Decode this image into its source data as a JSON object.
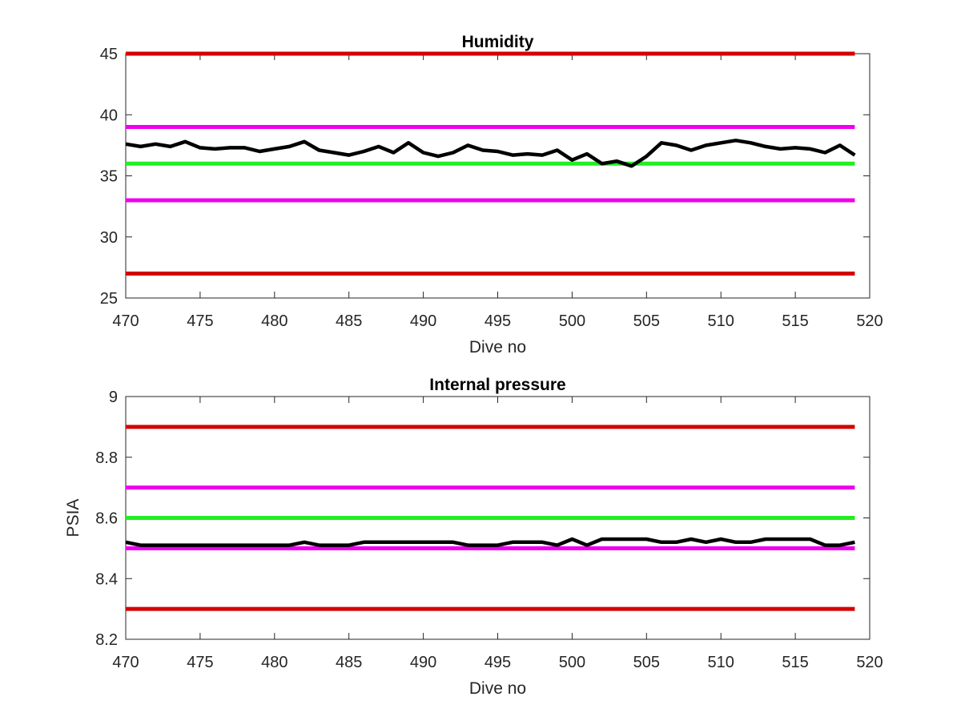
{
  "chart_data": [
    {
      "type": "line",
      "title": "Humidity",
      "xlabel": "Dive no",
      "ylabel": "",
      "xlim": [
        470,
        520
      ],
      "ylim": [
        25,
        45
      ],
      "xticks": [
        "470",
        "475",
        "480",
        "485",
        "490",
        "495",
        "500",
        "505",
        "510",
        "515",
        "520"
      ],
      "yticks": [
        "25",
        "30",
        "35",
        "40",
        "45"
      ],
      "grid": false,
      "limit_lines": [
        {
          "y": 45,
          "color": "#d40000"
        },
        {
          "y": 39,
          "color": "#ee00ee"
        },
        {
          "y": 36,
          "color": "#22ee22"
        },
        {
          "y": 33,
          "color": "#ee00ee"
        },
        {
          "y": 27,
          "color": "#d40000"
        }
      ],
      "series": [
        {
          "color": "#000000",
          "x": [
            470,
            471,
            472,
            473,
            474,
            475,
            476,
            477,
            478,
            479,
            480,
            481,
            482,
            483,
            484,
            485,
            486,
            487,
            488,
            489,
            490,
            491,
            492,
            493,
            494,
            495,
            496,
            497,
            498,
            499,
            500,
            501,
            502,
            503,
            504,
            505,
            506,
            507,
            508,
            509,
            510,
            511,
            512,
            513,
            514,
            515,
            516,
            517,
            518,
            519
          ],
          "y": [
            37.6,
            37.4,
            37.6,
            37.4,
            37.8,
            37.3,
            37.2,
            37.3,
            37.3,
            37.0,
            37.2,
            37.4,
            37.8,
            37.1,
            36.9,
            36.7,
            37.0,
            37.4,
            36.9,
            37.7,
            36.9,
            36.6,
            36.9,
            37.5,
            37.1,
            37.0,
            36.7,
            36.8,
            36.7,
            37.1,
            36.3,
            36.8,
            36.0,
            36.2,
            35.8,
            36.6,
            37.7,
            37.5,
            37.1,
            37.5,
            37.7,
            37.9,
            37.7,
            37.4,
            37.2,
            37.3,
            37.2,
            36.9,
            37.5,
            36.7
          ]
        }
      ]
    },
    {
      "type": "line",
      "title": "Internal pressure",
      "xlabel": "Dive no",
      "ylabel": "PSIA",
      "xlim": [
        470,
        520
      ],
      "ylim": [
        8.2,
        9.0
      ],
      "xticks": [
        "470",
        "475",
        "480",
        "485",
        "490",
        "495",
        "500",
        "505",
        "510",
        "515",
        "520"
      ],
      "yticks": [
        "8.2",
        "8.4",
        "8.6",
        "8.8",
        "9"
      ],
      "grid": false,
      "limit_lines": [
        {
          "y": 8.9,
          "color": "#d40000"
        },
        {
          "y": 8.7,
          "color": "#ee00ee"
        },
        {
          "y": 8.6,
          "color": "#22ee22"
        },
        {
          "y": 8.5,
          "color": "#ee00ee"
        },
        {
          "y": 8.3,
          "color": "#d40000"
        }
      ],
      "series": [
        {
          "color": "#000000",
          "x": [
            470,
            471,
            472,
            473,
            474,
            475,
            476,
            477,
            478,
            479,
            480,
            481,
            482,
            483,
            484,
            485,
            486,
            487,
            488,
            489,
            490,
            491,
            492,
            493,
            494,
            495,
            496,
            497,
            498,
            499,
            500,
            501,
            502,
            503,
            504,
            505,
            506,
            507,
            508,
            509,
            510,
            511,
            512,
            513,
            514,
            515,
            516,
            517,
            518,
            519
          ],
          "y": [
            8.52,
            8.51,
            8.51,
            8.51,
            8.51,
            8.51,
            8.51,
            8.51,
            8.51,
            8.51,
            8.51,
            8.51,
            8.52,
            8.51,
            8.51,
            8.51,
            8.52,
            8.52,
            8.52,
            8.52,
            8.52,
            8.52,
            8.52,
            8.51,
            8.51,
            8.51,
            8.52,
            8.52,
            8.52,
            8.51,
            8.53,
            8.51,
            8.53,
            8.53,
            8.53,
            8.53,
            8.52,
            8.52,
            8.53,
            8.52,
            8.53,
            8.52,
            8.52,
            8.53,
            8.53,
            8.53,
            8.53,
            8.51,
            8.51,
            8.52
          ]
        }
      ]
    }
  ]
}
